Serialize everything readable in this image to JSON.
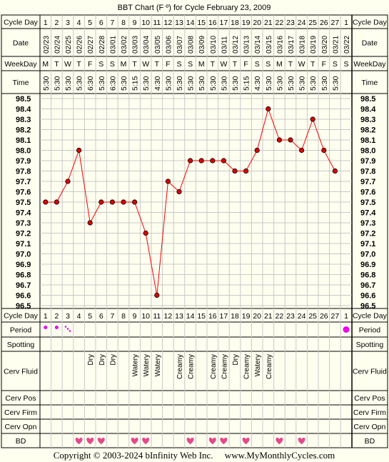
{
  "chart_data": {
    "type": "line",
    "title": "BBT Chart (F º) for Cycle February 23, 2009",
    "row_labels": {
      "cycle_day": "Cycle Day",
      "date": "Date",
      "weekday": "WeekDay",
      "time": "Time",
      "period": "Period",
      "spotting": "Spotting",
      "cerv_fluid": "Cerv Fluid",
      "cerv_pos": "Cerv Pos",
      "cerv_firm": "Cerv Firm",
      "cerv_opn": "Cerv Opn",
      "bd": "BD"
    },
    "cycle_days": [
      "1",
      "2",
      "3",
      "4",
      "5",
      "6",
      "7",
      "8",
      "9",
      "10",
      "11",
      "12",
      "13",
      "14",
      "15",
      "16",
      "17",
      "18",
      "19",
      "20",
      "21",
      "22",
      "23",
      "24",
      "25",
      "26",
      "27",
      "1"
    ],
    "dates": [
      "02/23",
      "02/24",
      "02/25",
      "02/26",
      "02/27",
      "02/28",
      "03/01",
      "03/02",
      "03/03",
      "03/04",
      "03/05",
      "03/06",
      "03/07",
      "03/08",
      "03/09",
      "03/10",
      "03/11",
      "03/12",
      "03/13",
      "03/14",
      "03/15",
      "03/16",
      "03/17",
      "03/18",
      "03/19",
      "03/20",
      "03/21",
      "03/22"
    ],
    "weekdays": [
      "M",
      "T",
      "W",
      "T",
      "F",
      "S",
      "S",
      "M",
      "T",
      "W",
      "T",
      "F",
      "S",
      "S",
      "M",
      "T",
      "W",
      "T",
      "F",
      "S",
      "S",
      "M",
      "T",
      "W",
      "T",
      "F",
      "S",
      "S"
    ],
    "times": [
      "5:30",
      "5:30",
      "5:30",
      "5:30",
      "6:30",
      "5:30",
      "6:30",
      "5:30",
      "5:15",
      "5:30",
      "4:30",
      "5:30",
      "5:30",
      "5:30",
      "5:30",
      "5:30",
      "5:30",
      "5:30",
      "5:15",
      "4:30",
      "5:30",
      "5:30",
      "5:30",
      "5:30",
      "5:30",
      "5:30",
      "5:30",
      ""
    ],
    "y_ticks": [
      "98.5",
      "98.4",
      "98.3",
      "98.2",
      "98.1",
      "98.0",
      "97.9",
      "97.8",
      "97.7",
      "97.6",
      "97.5",
      "97.4",
      "97.3",
      "97.2",
      "97.1",
      "97.0",
      "96.9",
      "96.8",
      "96.7",
      "96.6",
      "96.5"
    ],
    "ylim": [
      96.5,
      98.5
    ],
    "temperatures": [
      97.5,
      97.5,
      97.7,
      98.0,
      97.3,
      97.5,
      97.5,
      97.5,
      97.5,
      97.2,
      96.6,
      97.7,
      97.6,
      97.9,
      97.9,
      97.9,
      97.9,
      97.8,
      97.8,
      98.0,
      98.4,
      98.1,
      98.1,
      98.0,
      98.3,
      98.0,
      97.8,
      null
    ],
    "period": [
      "dot",
      "dot",
      "light",
      "",
      "",
      "",
      "",
      "",
      "",
      "",
      "",
      "",
      "",
      "",
      "",
      "",
      "",
      "",
      "",
      "",
      "",
      "",
      "",
      "",
      "",
      "",
      "",
      "dot"
    ],
    "cerv_fluid": [
      "",
      "",
      "",
      "",
      "Dry",
      "Dry",
      "Dry",
      "",
      "Watery",
      "Watery",
      "Watery",
      "",
      "Creamy",
      "Creamy",
      "",
      "Creamy",
      "Creamy",
      "Dry",
      "Creamy",
      "Watery",
      "Creamy",
      "",
      "",
      "",
      "",
      "",
      "",
      ""
    ],
    "bd": [
      false,
      false,
      false,
      true,
      true,
      true,
      false,
      false,
      true,
      true,
      false,
      false,
      false,
      true,
      false,
      true,
      true,
      false,
      true,
      false,
      false,
      true,
      false,
      true,
      false,
      false,
      false,
      false
    ],
    "copyright": "Copyright © 2003-2024 bInfinity Web Inc.     www.MyMonthlyCycles.com",
    "colors": {
      "line": "#ff0000",
      "point": "#dd0000",
      "period": "#ee00ee",
      "heart": "#e8488a",
      "grid": "#c8c8c8",
      "border": "#000000",
      "background": "#fffff0"
    }
  }
}
